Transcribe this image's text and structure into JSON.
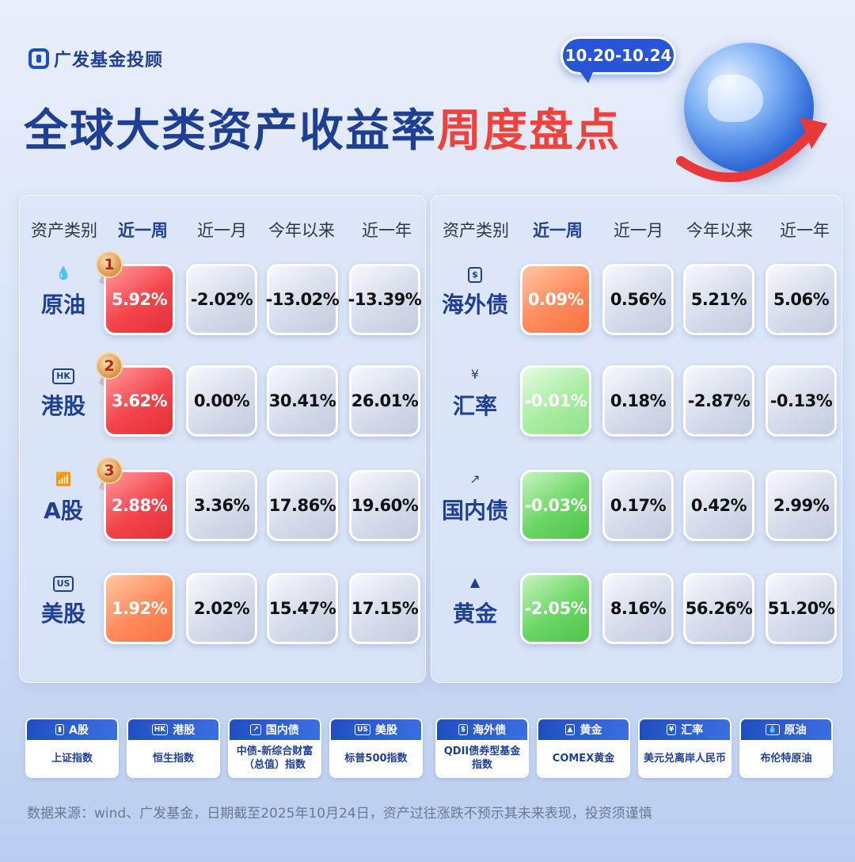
{
  "brand": {
    "name": "广发基金投顾"
  },
  "title": {
    "part1": "全球大类资产收益率",
    "part2": "周度盘点"
  },
  "date_range": "10.20-10.24",
  "headers": {
    "asset": "资产类别",
    "week": "近一周",
    "month": "近一月",
    "ytd": "今年以来",
    "year": "近一年"
  },
  "left_rows": [
    {
      "name": "原油",
      "icon": "drop-icon",
      "icon_text": "💧",
      "rank": "1",
      "week": "5.92%",
      "month": "-2.02%",
      "ytd": "-13.02%",
      "year": "-13.39%",
      "week_color": "red"
    },
    {
      "name": "港股",
      "icon": "hk-icon",
      "icon_text": "HK",
      "rank": "2",
      "week": "3.62%",
      "month": "0.00%",
      "ytd": "30.41%",
      "year": "26.01%",
      "week_color": "red"
    },
    {
      "name": "A股",
      "icon": "bar-chart-icon",
      "icon_text": "📶",
      "rank": "3",
      "week": "2.88%",
      "month": "3.36%",
      "ytd": "17.86%",
      "year": "19.60%",
      "week_color": "red"
    },
    {
      "name": "美股",
      "icon": "us-icon",
      "icon_text": "US",
      "rank": "",
      "week": "1.92%",
      "month": "2.02%",
      "ytd": "15.47%",
      "year": "17.15%",
      "week_color": "orange"
    }
  ],
  "right_rows": [
    {
      "name": "海外债",
      "icon": "dollar-bond-icon",
      "icon_text": "$",
      "week": "0.09%",
      "month": "0.56%",
      "ytd": "5.21%",
      "year": "5.06%",
      "week_color": "orange"
    },
    {
      "name": "汇率",
      "icon": "yuan-icon",
      "icon_text": "¥",
      "week": "-0.01%",
      "month": "0.18%",
      "ytd": "-2.87%",
      "year": "-0.13%",
      "week_color": "green-light"
    },
    {
      "name": "国内债",
      "icon": "trend-icon",
      "icon_text": "↗",
      "week": "-0.03%",
      "month": "0.17%",
      "ytd": "0.42%",
      "year": "2.99%",
      "week_color": "green"
    },
    {
      "name": "黄金",
      "icon": "gold-bar-icon",
      "icon_text": "▲",
      "week": "-2.05%",
      "month": "8.16%",
      "ytd": "56.26%",
      "year": "51.20%",
      "week_color": "green"
    }
  ],
  "legend": [
    {
      "name": "A股",
      "icon_text": "▮",
      "desc": "上证指数"
    },
    {
      "name": "港股",
      "icon_text": "HK",
      "desc": "恒生指数"
    },
    {
      "name": "国内债",
      "icon_text": "↗",
      "desc": "中债-新综合财富（总值）指数"
    },
    {
      "name": "美股",
      "icon_text": "US",
      "desc": "标普500指数"
    },
    {
      "name": "海外债",
      "icon_text": "$",
      "desc": "QDII债券型基金指数"
    },
    {
      "name": "黄金",
      "icon_text": "▲",
      "desc": "COMEX黄金"
    },
    {
      "name": "汇率",
      "icon_text": "¥",
      "desc": "美元兑离岸人民币"
    },
    {
      "name": "原油",
      "icon_text": "💧",
      "desc": "布伦特原油"
    }
  ],
  "footer": "数据来源：wind、广发基金，日期截至2025年10月24日，资产过往涨跌不预示其未来表现，投资须谨慎",
  "colors": {
    "brand_blue": "#1f3f95",
    "accent_red": "#f0413d",
    "bubble_blue": "#2656d6"
  }
}
